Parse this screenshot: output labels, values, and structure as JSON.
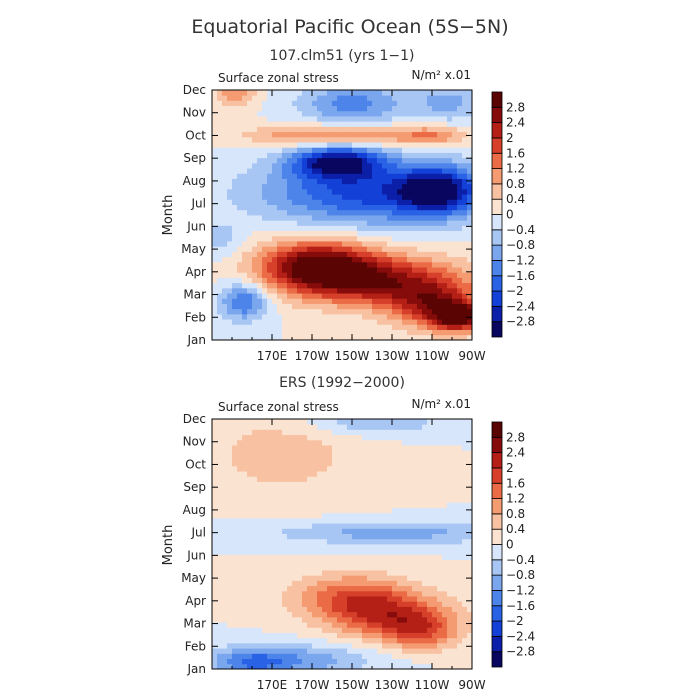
{
  "page_title": "Equatorial Pacific Ocean (5S−5N)",
  "colorbar_levels": [
    -2.8,
    -2.4,
    -2,
    -1.6,
    -1.2,
    -0.8,
    -0.4,
    0,
    0.4,
    0.8,
    1.2,
    1.6,
    2,
    2.4,
    2.8
  ],
  "colorbar_labels": [
    "−2.8",
    "−2.4",
    "−2",
    "−1.6",
    "−1.2",
    "−0.8",
    "−0.4",
    "0",
    "0.4",
    "0.8",
    "1.2",
    "1.6",
    "2",
    "2.4",
    "2.8"
  ],
  "colors": [
    "#08065e",
    "#0b1fa8",
    "#1340d6",
    "#2a62e6",
    "#4c84ea",
    "#7aa6ee",
    "#a8c6f3",
    "#d7e6fa",
    "#fbe3d1",
    "#f8c2a2",
    "#f59b72",
    "#ea6b45",
    "#d6402a",
    "#b41f16",
    "#860c0b",
    "#5a0404"
  ],
  "chart_data": [
    {
      "type": "heatmap",
      "title": "107.clm51 (yrs 1−1)",
      "variable_label": "Surface zonal stress",
      "units_label": "N/m² x.01",
      "ylabel": "Month",
      "xlabel": "",
      "x_ticks": [
        "170E",
        "170W",
        "150W",
        "130W",
        "110W",
        "90W"
      ],
      "x_range": [
        -220,
        -90
      ],
      "y_ticks": [
        "Jan",
        "Feb",
        "Mar",
        "Apr",
        "May",
        "Jun",
        "Jul",
        "Aug",
        "Sep",
        "Oct",
        "Nov",
        "Dec"
      ],
      "z_units": "N/m2 x0.01",
      "features": [
        {
          "lon": -208,
          "month": 12,
          "value": 1.2,
          "lon_width": 10,
          "month_width": 0.7
        },
        {
          "lon": -150,
          "month": 11.4,
          "value": -1.4,
          "lon_width": 26,
          "month_width": 0.9
        },
        {
          "lon": -102,
          "month": 11.5,
          "value": -0.9,
          "lon_width": 18,
          "month_width": 0.9
        },
        {
          "lon": -160,
          "month": 10.0,
          "value": 1.5,
          "lon_width": 40,
          "month_width": 0.45
        },
        {
          "lon": -110,
          "month": 10.0,
          "value": 1.1,
          "lon_width": 18,
          "month_width": 0.45
        },
        {
          "lon": -158,
          "month": 8.85,
          "value": -2.7,
          "lon_width": 22,
          "month_width": 0.7
        },
        {
          "lon": -140,
          "month": 7.5,
          "value": -2.2,
          "lon_width": 55,
          "month_width": 1.4
        },
        {
          "lon": -107,
          "month": 7.6,
          "value": -2.3,
          "lon_width": 18,
          "month_width": 1.0
        },
        {
          "lon": -168,
          "month": 4.3,
          "value": 2.9,
          "lon_width": 28,
          "month_width": 1.1
        },
        {
          "lon": -135,
          "month": 3.6,
          "value": 2.4,
          "lon_width": 40,
          "month_width": 1.1
        },
        {
          "lon": -108,
          "month": 2.5,
          "value": 2.0,
          "lon_width": 22,
          "month_width": 1.0
        },
        {
          "lon": -97,
          "month": 2.0,
          "value": 2.5,
          "lon_width": 12,
          "month_width": 0.6
        },
        {
          "lon": -204,
          "month": 2.7,
          "value": -1.7,
          "lon_width": 12,
          "month_width": 0.8
        },
        {
          "lon": -215,
          "month": 5.4,
          "value": -0.6,
          "lon_width": 10,
          "month_width": 0.8
        }
      ]
    },
    {
      "type": "heatmap",
      "title": "ERS (1992−2000)",
      "variable_label": "Surface zonal stress",
      "units_label": "N/m² x.01",
      "ylabel": "Month",
      "xlabel": "",
      "x_ticks": [
        "170E",
        "170W",
        "150W",
        "130W",
        "110W",
        "90W"
      ],
      "x_range": [
        -220,
        -90
      ],
      "y_ticks": [
        "Jan",
        "Feb",
        "Mar",
        "Apr",
        "May",
        "Jun",
        "Jul",
        "Aug",
        "Sep",
        "Oct",
        "Nov",
        "Dec"
      ],
      "z_units": "N/m2 x0.01",
      "features": [
        {
          "lon": -185,
          "month": 10.5,
          "value": 0.6,
          "lon_width": 40,
          "month_width": 2.0
        },
        {
          "lon": -140,
          "month": 11.9,
          "value": -0.8,
          "lon_width": 35,
          "month_width": 0.6
        },
        {
          "lon": -130,
          "month": 7.0,
          "value": -1.0,
          "lon_width": 60,
          "month_width": 0.5
        },
        {
          "lon": -150,
          "month": 4.2,
          "value": 1.5,
          "lon_width": 30,
          "month_width": 1.0
        },
        {
          "lon": -130,
          "month": 3.3,
          "value": 1.7,
          "lon_width": 30,
          "month_width": 1.0
        },
        {
          "lon": -115,
          "month": 2.6,
          "value": 1.2,
          "lon_width": 18,
          "month_width": 0.8
        },
        {
          "lon": -180,
          "month": 1.4,
          "value": -1.1,
          "lon_width": 40,
          "month_width": 0.7
        },
        {
          "lon": -200,
          "month": 1.3,
          "value": -1.0,
          "lon_width": 18,
          "month_width": 0.6
        }
      ]
    }
  ]
}
